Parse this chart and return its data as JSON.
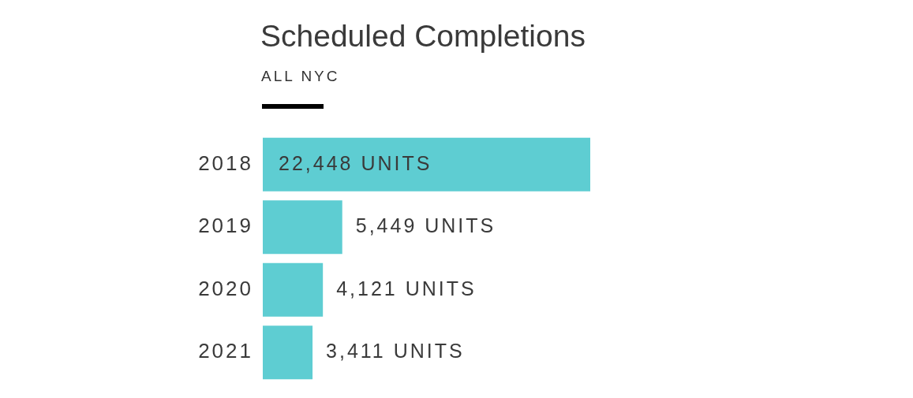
{
  "chart_data": {
    "type": "bar",
    "orientation": "horizontal",
    "title": "Scheduled Completions",
    "subtitle": "ALL NYC",
    "categories": [
      "2018",
      "2019",
      "2020",
      "2021"
    ],
    "values": [
      22448,
      5449,
      4121,
      3411
    ],
    "value_labels": [
      "22,448 UNITS",
      "5,449 UNITS",
      "4,121 UNITS",
      "3,411 UNITS"
    ],
    "color": "#5ecdd2"
  }
}
